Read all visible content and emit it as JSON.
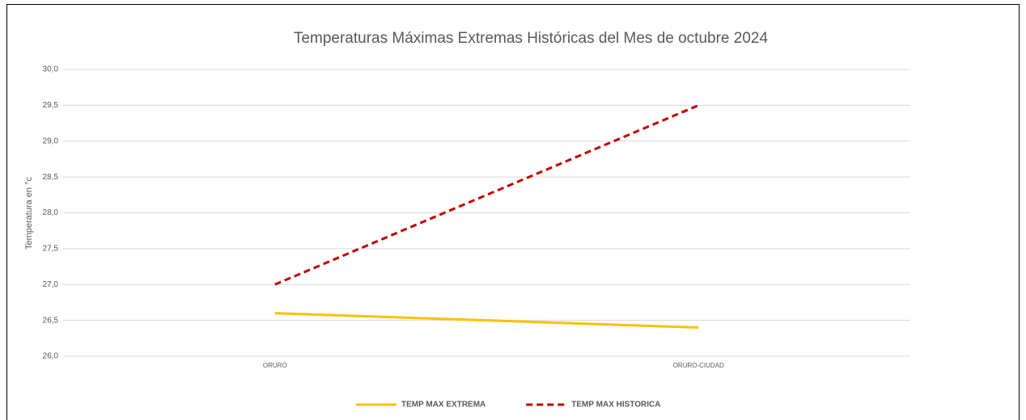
{
  "chart_data": {
    "type": "line",
    "title": "Temperaturas Máximas Extremas Históricas del Mes de octubre 2024",
    "y_label": "Temperatura en °c",
    "categories": [
      "ORURO",
      "ORURO-CIUDAD"
    ],
    "series": [
      {
        "name": "TEMP MAX EXTREMA",
        "color": "#ffc000",
        "dashed": false,
        "values": [
          26.6,
          26.4
        ]
      },
      {
        "name": "TEMP MAX HISTORICA",
        "color": "#c00000",
        "dashed": true,
        "values": [
          27.0,
          29.5
        ]
      }
    ],
    "ylim": [
      26,
      30
    ],
    "yticks": [
      {
        "value": 26,
        "label": "26,0"
      },
      {
        "value": 26.5,
        "label": "26,5"
      },
      {
        "value": 27,
        "label": "27,0"
      },
      {
        "value": 27.5,
        "label": "27,5"
      },
      {
        "value": 28,
        "label": "28,0"
      },
      {
        "value": 28.5,
        "label": "28,5"
      },
      {
        "value": 29,
        "label": "29,0"
      },
      {
        "value": 29.5,
        "label": "29,5"
      },
      {
        "value": 30,
        "label": "30,0"
      }
    ],
    "grid": true,
    "legend": "bottom"
  }
}
